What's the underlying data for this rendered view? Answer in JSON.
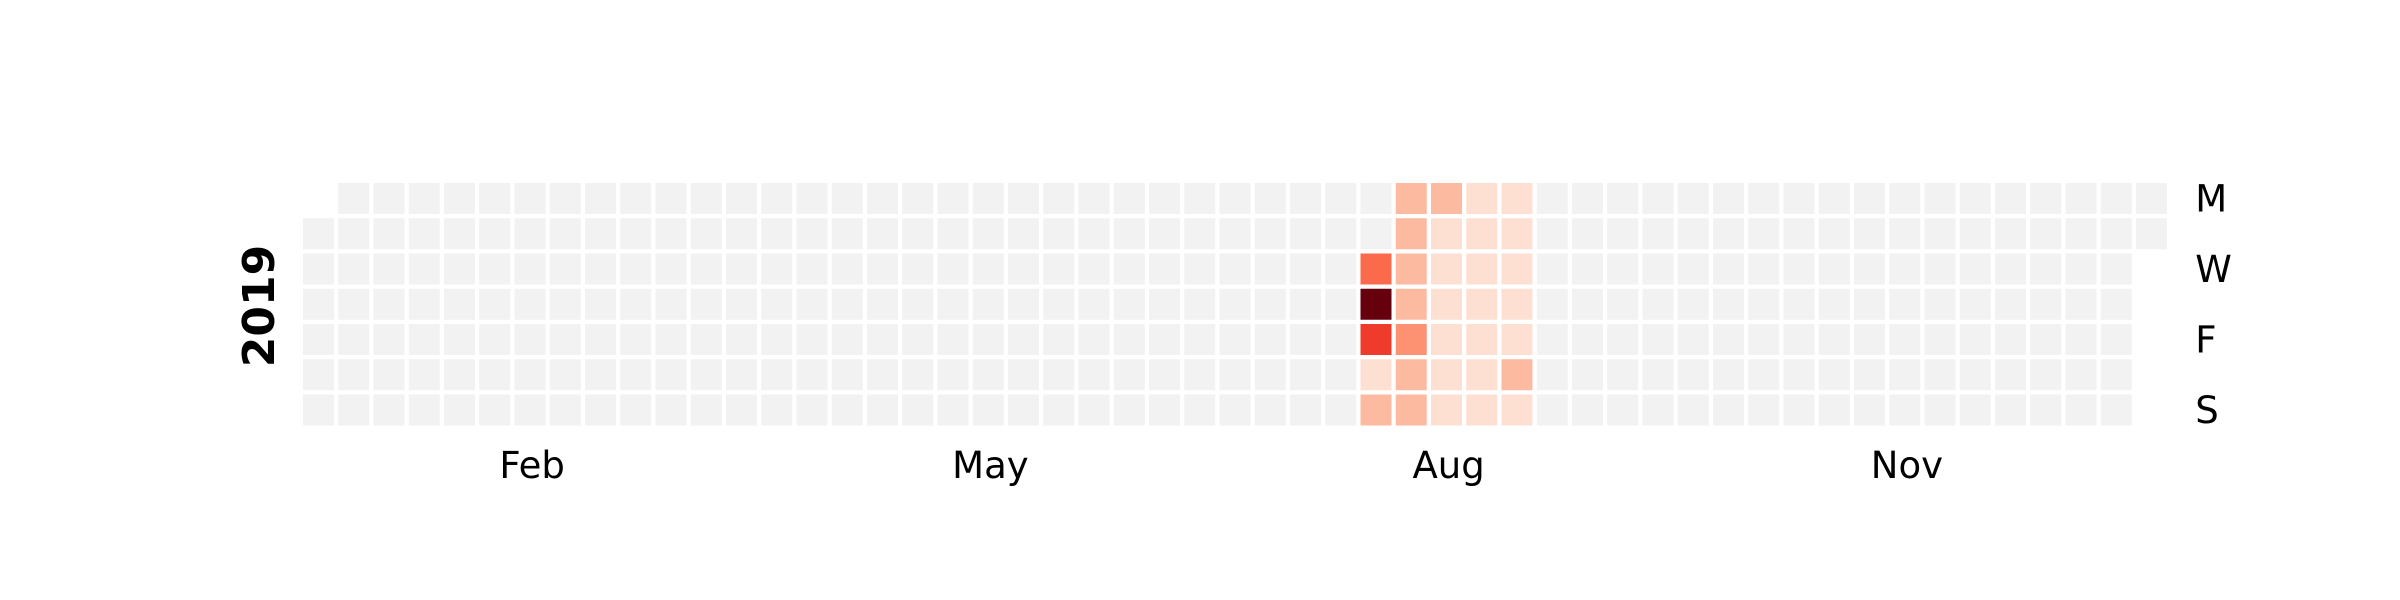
{
  "chart_data": {
    "type": "heatmap",
    "title": "",
    "year_label": "2019",
    "year": 2019,
    "start_weekday": "Tuesday",
    "weekday_labels": [
      "M",
      "",
      "W",
      "",
      "F",
      "",
      "S"
    ],
    "month_ticks": [
      {
        "label": "Feb",
        "week": 6.5
      },
      {
        "label": "May",
        "week": 19.5
      },
      {
        "label": "Aug",
        "week": 32.5
      },
      {
        "label": "Nov",
        "week": 45.5
      }
    ],
    "empty_color": "#f2f2f2",
    "colormap": [
      "#fff5f0",
      "#fee0d2",
      "#fcbba1",
      "#fc9272",
      "#fb6a4a",
      "#ef3b2c",
      "#cb181d",
      "#67000d"
    ],
    "vmax": 7,
    "days": {
      "2019-07-31": 4,
      "2019-08-01": 7,
      "2019-08-02": 5,
      "2019-08-03": 1,
      "2019-08-04": 2,
      "2019-08-05": 2,
      "2019-08-06": 2,
      "2019-08-07": 2,
      "2019-08-08": 2,
      "2019-08-09": 3,
      "2019-08-10": 2,
      "2019-08-11": 2,
      "2019-08-12": 2,
      "2019-08-13": 1,
      "2019-08-14": 1,
      "2019-08-15": 1,
      "2019-08-16": 1,
      "2019-08-17": 1,
      "2019-08-18": 1,
      "2019-08-19": 1,
      "2019-08-20": 1,
      "2019-08-21": 1,
      "2019-08-22": 1,
      "2019-08-23": 1,
      "2019-08-24": 1,
      "2019-08-25": 1,
      "2019-08-26": 1,
      "2019-08-27": 1,
      "2019-08-28": 1,
      "2019-08-29": 1,
      "2019-08-30": 1,
      "2019-08-31": 2,
      "2019-09-01": 1
    }
  }
}
